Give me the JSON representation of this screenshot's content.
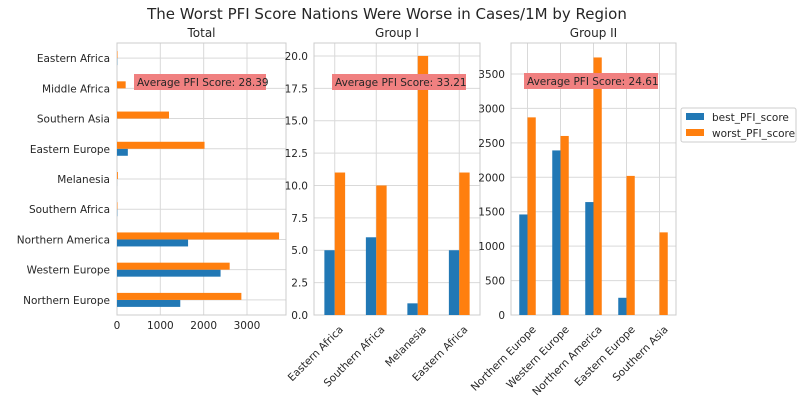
{
  "title": "The Worst PFI Score Nations Were Worse in Cases/1M by Region",
  "colors": {
    "best": "#2178b5",
    "worst": "#ff7f0e",
    "annotation_bg": "#f08080",
    "grid": "#d9d9d9",
    "spine": "#cccccc"
  },
  "legend": {
    "placement": "right",
    "labels": [
      "best_PFI_score",
      "worst_PFI_score"
    ]
  },
  "chart_data": [
    {
      "type": "bar",
      "orientation": "horizontal",
      "title": "Total",
      "categories": [
        "Northern Europe",
        "Western Europe",
        "Northern America",
        "Southern Africa",
        "Melanesia",
        "Eastern Europe",
        "Southern Asia",
        "Middle Africa",
        "Eastern Africa"
      ],
      "series": [
        {
          "name": "best_PFI_score",
          "values": [
            1460,
            2390,
            1640,
            6,
            1,
            250,
            0,
            0,
            5
          ]
        },
        {
          "name": "worst_PFI_score",
          "values": [
            2870,
            2600,
            3740,
            10,
            20,
            2020,
            1200,
            200,
            11
          ]
        }
      ],
      "xlim": [
        0,
        3900
      ],
      "xticks": [
        0,
        1000,
        2000,
        3000
      ],
      "annotation": "Average PFI Score: 28.39",
      "grid": true
    },
    {
      "type": "bar",
      "title": "Group I",
      "categories": [
        "Eastern Africa",
        "Southern Africa",
        "Melanesia",
        "Eastern Africa"
      ],
      "series": [
        {
          "name": "best_PFI_score",
          "values": [
            5,
            6,
            0.9,
            5
          ]
        },
        {
          "name": "worst_PFI_score",
          "values": [
            11,
            10,
            20,
            11
          ]
        }
      ],
      "ylim": [
        0,
        21
      ],
      "yticks": [
        0.0,
        2.5,
        5.0,
        7.5,
        10.0,
        12.5,
        15.0,
        17.5,
        20.0
      ],
      "annotation": "Average PFI Score: 33.21",
      "grid": true
    },
    {
      "type": "bar",
      "title": "Group II",
      "categories": [
        "Northern Europe",
        "Western Europe",
        "Northern America",
        "Eastern Europe",
        "Southern Asia"
      ],
      "series": [
        {
          "name": "best_PFI_score",
          "values": [
            1460,
            2390,
            1640,
            250,
            0
          ]
        },
        {
          "name": "worst_PFI_score",
          "values": [
            2870,
            2600,
            3740,
            2020,
            1200
          ]
        }
      ],
      "ylim": [
        0,
        3950
      ],
      "yticks": [
        0,
        500,
        1000,
        1500,
        2000,
        2500,
        3000,
        3500
      ],
      "annotation": "Average PFI Score: 24.61",
      "grid": true
    }
  ]
}
